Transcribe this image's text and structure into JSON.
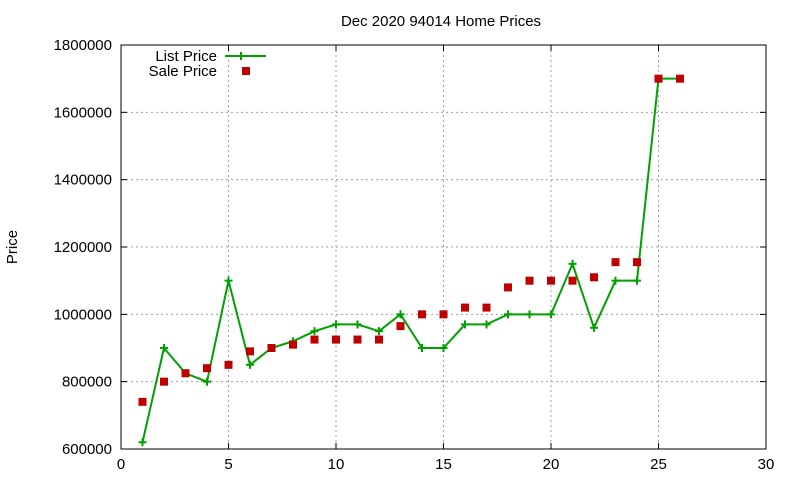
{
  "colors": {
    "list_price": "#00a000",
    "sale_price": "#c00000",
    "grid": "#a0a0a0",
    "axis": "#000000",
    "background": "#ffffff"
  },
  "chart_data": {
    "type": "line",
    "title": "Dec 2020 94014 Home Prices",
    "xlabel": "",
    "ylabel": "Price",
    "xlim": [
      0,
      30
    ],
    "ylim": [
      600000,
      1800000
    ],
    "x_ticks": [
      "0",
      "5",
      "10",
      "15",
      "20",
      "25",
      "30"
    ],
    "y_ticks": [
      "600000",
      "800000",
      "1000000",
      "1200000",
      "1400000",
      "1600000",
      "1800000"
    ],
    "grid": true,
    "legend_position": "top-left",
    "series": [
      {
        "name": "List Price",
        "style": "line-with-plus-markers",
        "x": [
          1,
          2,
          3,
          4,
          5,
          6,
          7,
          8,
          9,
          10,
          11,
          12,
          13,
          14,
          15,
          16,
          17,
          18,
          19,
          20,
          21,
          22,
          23,
          24,
          25,
          26
        ],
        "y": [
          620000,
          900000,
          825000,
          800000,
          1100000,
          850000,
          900000,
          920000,
          950000,
          970000,
          970000,
          950000,
          1000000,
          900000,
          900000,
          970000,
          970000,
          1000000,
          1000000,
          1000000,
          1150000,
          960000,
          1100000,
          1100000,
          1700000,
          1700000
        ]
      },
      {
        "name": "Sale Price",
        "style": "square-markers",
        "x": [
          1,
          2,
          3,
          4,
          5,
          6,
          7,
          8,
          9,
          10,
          11,
          12,
          13,
          14,
          15,
          16,
          17,
          18,
          19,
          20,
          21,
          22,
          23,
          24,
          25,
          26
        ],
        "y": [
          740000,
          800000,
          825000,
          840000,
          850000,
          890000,
          900000,
          910000,
          925000,
          925000,
          925000,
          925000,
          965000,
          1000000,
          1000000,
          1020000,
          1020000,
          1080000,
          1100000,
          1100000,
          1100000,
          1110000,
          1155000,
          1155000,
          1700000,
          1700000
        ]
      }
    ]
  }
}
